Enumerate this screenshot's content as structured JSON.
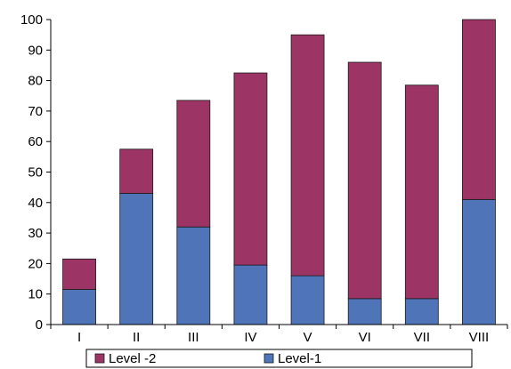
{
  "chart_data": {
    "type": "bar",
    "stacked": true,
    "categories": [
      "I",
      "II",
      "III",
      "IV",
      "V",
      "VI",
      "VII",
      "VIII"
    ],
    "series": [
      {
        "name": "Level-1",
        "color": "#4f74b8",
        "values": [
          11.5,
          43,
          32,
          19.5,
          16,
          8.5,
          8.5,
          41
        ]
      },
      {
        "name": "Level -2",
        "color": "#9c3566",
        "values": [
          10,
          14.5,
          41.5,
          63,
          79,
          77.5,
          70,
          59
        ]
      }
    ],
    "y_ticks": [
      "0",
      "10",
      "20",
      "30",
      "40",
      "50",
      "60",
      "70",
      "80",
      "90",
      "100"
    ],
    "ylim": [
      0,
      100
    ],
    "grid": false,
    "legend": {
      "placement": "bottom",
      "entries": [
        {
          "label": "Level -2",
          "color": "#9c3566"
        },
        {
          "label": "Level-1",
          "color": "#4f74b8"
        }
      ]
    }
  }
}
